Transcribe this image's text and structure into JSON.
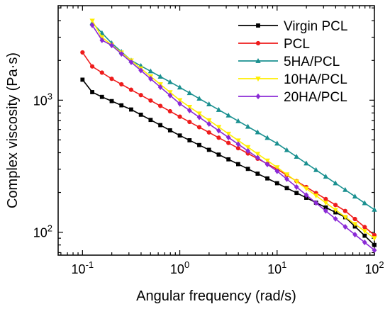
{
  "chart_data": {
    "type": "line",
    "xlabel": "Angular frequency (rad/s)",
    "ylabel": "Complex viscosity (Pa·s)",
    "x_scale": "log",
    "y_scale": "log",
    "xlim": [
      0.0562,
      100
    ],
    "ylim": [
      67,
      5200
    ],
    "x_ticks": [
      {
        "base": "10",
        "exp": "-1",
        "value": 0.1
      },
      {
        "base": "10",
        "exp": "0",
        "value": 1
      },
      {
        "base": "10",
        "exp": "1",
        "value": 10
      },
      {
        "base": "10",
        "exp": "2",
        "value": 100
      }
    ],
    "y_ticks": [
      {
        "base": "10",
        "exp": "2",
        "value": 100
      },
      {
        "base": "10",
        "exp": "3",
        "value": 1000
      }
    ],
    "grid": false,
    "legend_position": "top-right",
    "series": [
      {
        "name": "Virgin PCL",
        "color": "#000000",
        "marker": "square",
        "x_start": 0.1,
        "x_end": 100,
        "n_points": 31,
        "anchors_x": [
          0.1,
          0.126,
          0.158,
          0.316,
          1,
          10,
          50,
          100
        ],
        "anchors_y": [
          1430,
          1150,
          1060,
          850,
          540,
          235,
          130,
          80
        ]
      },
      {
        "name": "PCL",
        "color": "#ee1c1c",
        "marker": "circle",
        "x_start": 0.1,
        "x_end": 100,
        "n_points": 31,
        "anchors_x": [
          0.1,
          0.126,
          0.2,
          0.316,
          1,
          10,
          50,
          100
        ],
        "anchors_y": [
          2300,
          1800,
          1450,
          1200,
          750,
          300,
          145,
          95
        ]
      },
      {
        "name": "5HA/PCL",
        "color": "#1a9090",
        "marker": "triangle-up",
        "x_start": 0.126,
        "x_end": 100,
        "n_points": 30,
        "anchors_x": [
          0.126,
          0.2,
          0.316,
          1,
          10,
          100
        ],
        "anchors_y": [
          3850,
          2700,
          2000,
          1250,
          470,
          148
        ]
      },
      {
        "name": "10HA/PCL",
        "color": "#ffee00",
        "marker": "triangle-down",
        "x_start": 0.126,
        "x_end": 100,
        "n_points": 30,
        "anchors_x": [
          0.126,
          0.158,
          0.25,
          1,
          10,
          100
        ],
        "anchors_y": [
          4000,
          3000,
          2300,
          1000,
          310,
          90
        ]
      },
      {
        "name": "20HA/PCL",
        "color": "#8b2bd6",
        "marker": "diamond",
        "x_start": 0.126,
        "x_end": 100,
        "n_points": 30,
        "anchors_x": [
          0.126,
          0.158,
          0.2,
          0.25,
          1,
          10,
          50,
          100
        ],
        "anchors_y": [
          3700,
          2850,
          2600,
          2250,
          940,
          290,
          110,
          73
        ]
      }
    ]
  }
}
